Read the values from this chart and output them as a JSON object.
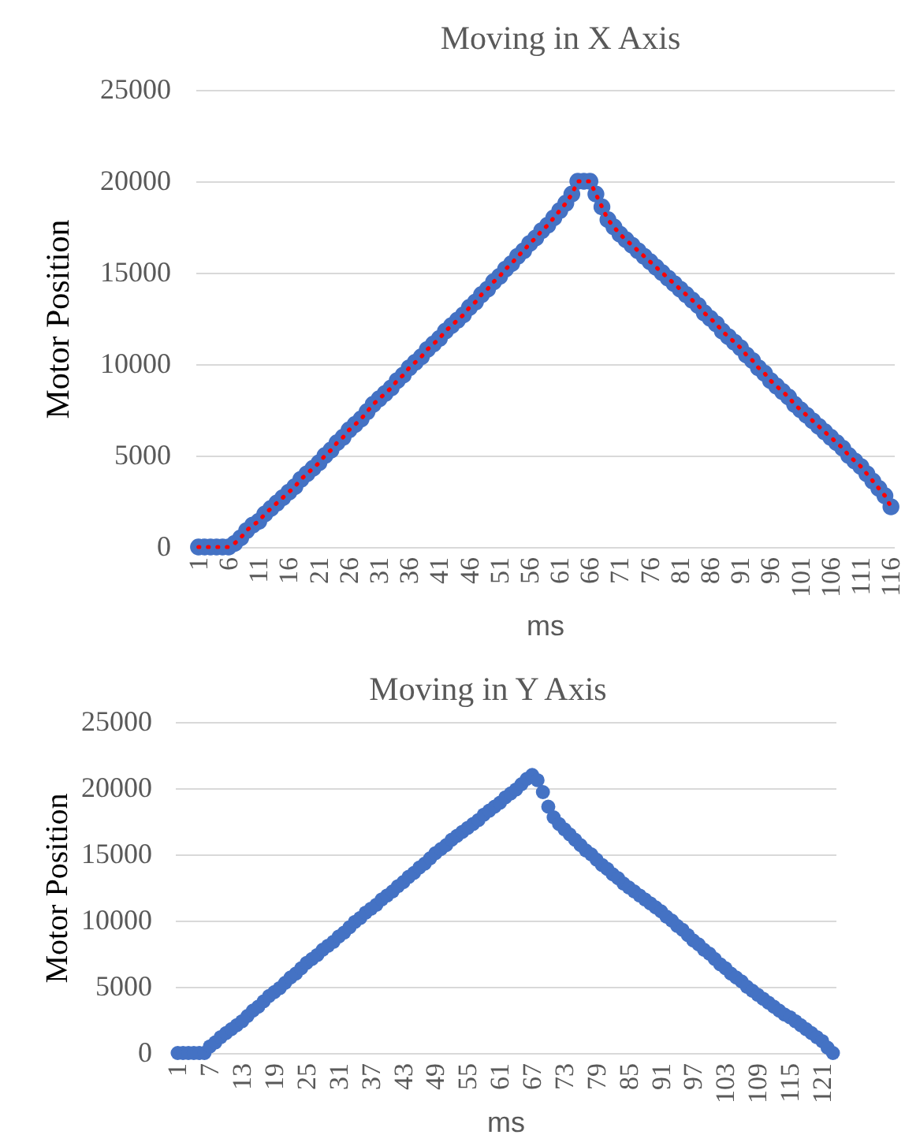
{
  "chart_data": [
    {
      "type": "line",
      "title": "Moving in X Axis",
      "xlabel": "ms",
      "ylabel": "Motor Position",
      "ylim": [
        0,
        25000
      ],
      "yticks": [
        0,
        5000,
        10000,
        15000,
        20000,
        25000
      ],
      "grid": "y",
      "marker": "circle",
      "line_style": "dotted",
      "categories": [
        "1",
        null,
        null,
        null,
        null,
        "6",
        null,
        null,
        null,
        null,
        "11",
        null,
        null,
        null,
        null,
        "16",
        null,
        null,
        null,
        null,
        "21",
        null,
        null,
        null,
        null,
        "26",
        null,
        null,
        null,
        null,
        "31",
        null,
        null,
        null,
        null,
        "36",
        null,
        null,
        null,
        null,
        "41",
        null,
        null,
        null,
        null,
        "46",
        null,
        null,
        null,
        null,
        "51",
        null,
        null,
        null,
        null,
        "56",
        null,
        null,
        null,
        null,
        "61",
        null,
        null,
        null,
        null,
        "66",
        null,
        null,
        null,
        null,
        "71",
        null,
        null,
        null,
        null,
        "76",
        null,
        null,
        null,
        null,
        "81",
        null,
        null,
        null,
        null,
        "86",
        null,
        null,
        null,
        null,
        "91",
        null,
        null,
        null,
        null,
        "96",
        null,
        null,
        null,
        null,
        "101",
        null,
        null,
        null,
        null,
        "106",
        null,
        null,
        null,
        null,
        "111",
        null,
        null,
        null,
        null,
        "116"
      ],
      "series": [
        {
          "type": "scatter",
          "color": "#4472c4",
          "values": [
            0,
            0,
            0,
            0,
            0,
            0,
            200,
            500,
            900,
            1200,
            1400,
            1800,
            2100,
            2400,
            2700,
            3000,
            3300,
            3700,
            4000,
            4300,
            4600,
            5000,
            5300,
            5700,
            6000,
            6400,
            6700,
            7000,
            7400,
            7800,
            8100,
            8400,
            8700,
            9100,
            9400,
            9800,
            10100,
            10400,
            10800,
            11100,
            11400,
            11800,
            12100,
            12400,
            12700,
            13100,
            13400,
            13800,
            14100,
            14500,
            14800,
            15200,
            15500,
            15900,
            16200,
            16600,
            16900,
            17300,
            17600,
            18000,
            18400,
            18800,
            19300,
            20000,
            20000,
            20000,
            19300,
            18600,
            17900,
            17500,
            17100,
            16800,
            16500,
            16200,
            15900,
            15600,
            15300,
            15000,
            14700,
            14400,
            14100,
            13800,
            13500,
            13200,
            12800,
            12500,
            12200,
            11800,
            11500,
            11200,
            10900,
            10500,
            10200,
            9800,
            9500,
            9100,
            8800,
            8500,
            8200,
            7800,
            7500,
            7200,
            6900,
            6600,
            6300,
            6000,
            5700,
            5400,
            5000,
            4700,
            4400,
            4000,
            3600,
            3200,
            2800,
            2200
          ]
        },
        {
          "type": "line",
          "color": "#ff0000",
          "marker": "none",
          "values": [
            0,
            0,
            0,
            0,
            0,
            0,
            200,
            500,
            900,
            1200,
            1400,
            1800,
            2100,
            2400,
            2700,
            3000,
            3300,
            3700,
            4000,
            4300,
            4600,
            5000,
            5300,
            5700,
            6000,
            6400,
            6700,
            7000,
            7400,
            7800,
            8100,
            8400,
            8700,
            9100,
            9400,
            9800,
            10100,
            10400,
            10800,
            11100,
            11400,
            11800,
            12100,
            12400,
            12700,
            13100,
            13400,
            13800,
            14100,
            14500,
            14800,
            15200,
            15500,
            15900,
            16200,
            16600,
            16900,
            17300,
            17600,
            18000,
            18400,
            18800,
            19300,
            20000,
            20000,
            20000,
            19300,
            18600,
            17900,
            17500,
            17100,
            16800,
            16500,
            16200,
            15900,
            15600,
            15300,
            15000,
            14700,
            14400,
            14100,
            13800,
            13500,
            13200,
            12800,
            12500,
            12200,
            11800,
            11500,
            11200,
            10900,
            10500,
            10200,
            9800,
            9500,
            9100,
            8800,
            8500,
            8200,
            7800,
            7500,
            7200,
            6900,
            6600,
            6300,
            6000,
            5700,
            5400,
            5000,
            4700,
            4400,
            4000,
            3600,
            3200,
            2800,
            2200
          ]
        }
      ]
    },
    {
      "type": "scatter",
      "title": "Moving in Y Axis",
      "xlabel": "ms",
      "ylabel": "Motor Position",
      "ylim": [
        0,
        25000
      ],
      "yticks": [
        0,
        5000,
        10000,
        15000,
        20000,
        25000
      ],
      "grid": "y",
      "marker": "circle",
      "categories": [
        "1",
        null,
        null,
        null,
        null,
        null,
        "7",
        null,
        null,
        null,
        null,
        null,
        "13",
        null,
        null,
        null,
        null,
        null,
        "19",
        null,
        null,
        null,
        null,
        null,
        "25",
        null,
        null,
        null,
        null,
        null,
        "31",
        null,
        null,
        null,
        null,
        null,
        "37",
        null,
        null,
        null,
        null,
        null,
        "43",
        null,
        null,
        null,
        null,
        null,
        "49",
        null,
        null,
        null,
        null,
        null,
        "55",
        null,
        null,
        null,
        null,
        null,
        "61",
        null,
        null,
        null,
        null,
        null,
        "67",
        null,
        null,
        null,
        null,
        null,
        "73",
        null,
        null,
        null,
        null,
        null,
        "79",
        null,
        null,
        null,
        null,
        null,
        "85",
        null,
        null,
        null,
        null,
        null,
        "91",
        null,
        null,
        null,
        null,
        null,
        "97",
        null,
        null,
        null,
        null,
        null,
        "103",
        null,
        null,
        null,
        null,
        null,
        "109",
        null,
        null,
        null,
        null,
        null,
        "115",
        null,
        null,
        null,
        null,
        null,
        "121",
        null,
        null
      ],
      "series": [
        {
          "color": "#4472c4",
          "values": [
            0,
            0,
            0,
            0,
            0,
            0,
            500,
            800,
            1200,
            1500,
            1800,
            2100,
            2400,
            2800,
            3200,
            3500,
            3900,
            4300,
            4600,
            4900,
            5300,
            5700,
            6000,
            6400,
            6800,
            7100,
            7400,
            7800,
            8100,
            8400,
            8800,
            9100,
            9500,
            9900,
            10200,
            10600,
            10900,
            11200,
            11600,
            11900,
            12200,
            12600,
            12900,
            13300,
            13600,
            14000,
            14300,
            14700,
            15100,
            15400,
            15700,
            16100,
            16400,
            16700,
            17000,
            17300,
            17600,
            18000,
            18300,
            18600,
            18900,
            19300,
            19600,
            19900,
            20300,
            20700,
            21000,
            20600,
            19700,
            18600,
            17800,
            17300,
            16900,
            16500,
            16100,
            15700,
            15300,
            15000,
            14600,
            14200,
            13900,
            13500,
            13200,
            12800,
            12500,
            12200,
            11900,
            11600,
            11300,
            11000,
            10700,
            10300,
            10000,
            9600,
            9300,
            8900,
            8500,
            8200,
            7800,
            7500,
            7100,
            6700,
            6400,
            6000,
            5700,
            5400,
            5000,
            4700,
            4400,
            4100,
            3800,
            3500,
            3200,
            2900,
            2700,
            2400,
            2100,
            1800,
            1500,
            1200,
            900,
            400,
            0
          ]
        }
      ]
    }
  ]
}
